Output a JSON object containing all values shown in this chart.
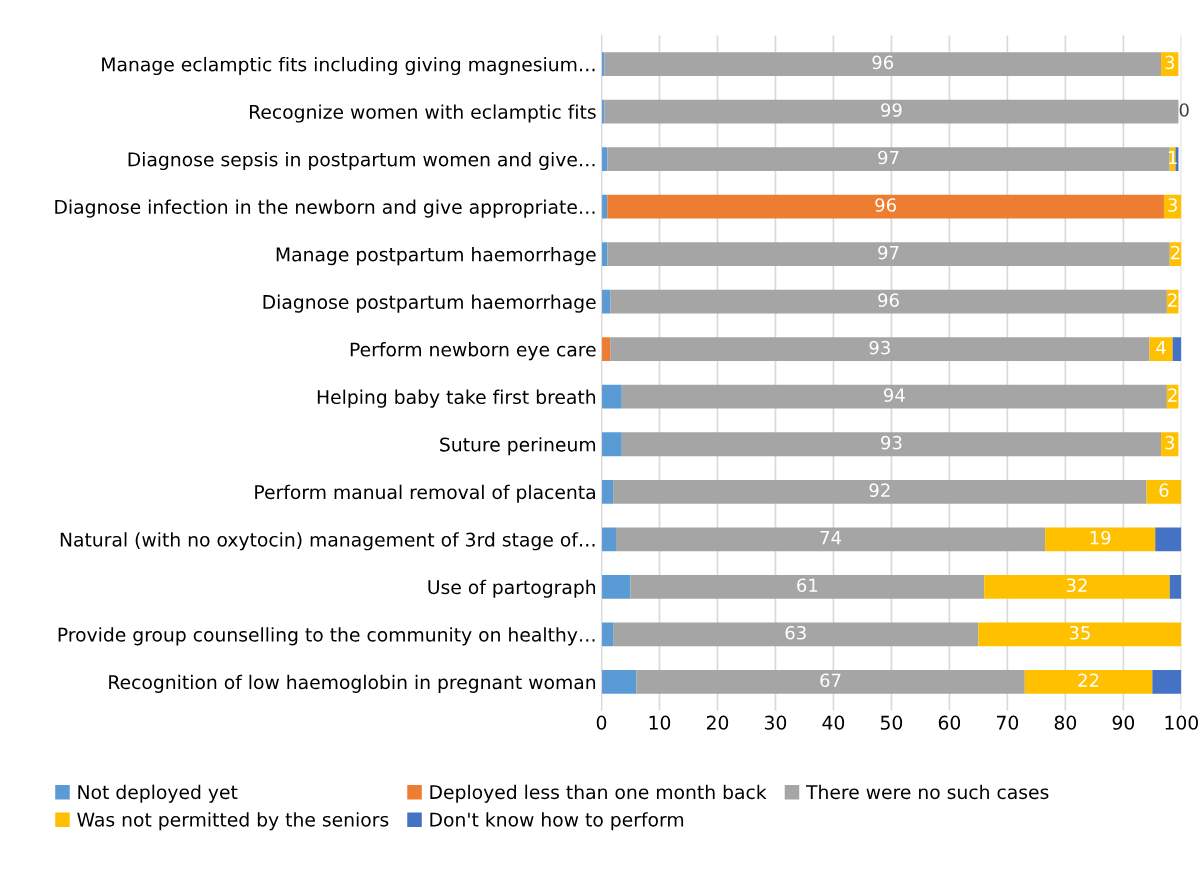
{
  "chart_data": {
    "type": "bar",
    "orientation": "horizontal",
    "stacked": true,
    "categories": [
      "Manage eclamptic fits including giving magnesium…",
      "Recognize women with eclamptic fits",
      "Diagnose sepsis in postpartum women and give…",
      "Diagnose infection in the newborn and give appropriate…",
      "Manage postpartum haemorrhage",
      "Diagnose postpartum haemorrhage",
      "Perform newborn eye care",
      "Helping baby take first breath",
      "Suture perineum",
      "Perform manual removal of placenta",
      "Natural (with no oxytocin) management of 3rd stage of…",
      "Use of partograph",
      "Provide group counselling to the community on healthy…",
      "Recognition of low haemoglobin in pregnant woman"
    ],
    "series": [
      {
        "name": "Not deployed yet",
        "color": "#5b9bd5",
        "values": [
          0.5,
          0.5,
          1,
          1,
          1,
          1.5,
          0,
          3.5,
          3.5,
          2,
          2.5,
          5,
          2,
          6
        ]
      },
      {
        "name": "Deployed less than one month back",
        "color": "#ed7d31",
        "values": [
          0,
          0,
          0,
          96,
          0,
          0,
          1.5,
          0,
          0,
          0,
          0,
          0,
          0,
          0
        ],
        "value_labels": [
          null,
          null,
          null,
          "96",
          null,
          null,
          null,
          null,
          null,
          null,
          null,
          null,
          null,
          null
        ]
      },
      {
        "name": "There were no such cases",
        "color": "#a5a5a5",
        "values": [
          96,
          99,
          97,
          0,
          97,
          96,
          93,
          94,
          93,
          92,
          74,
          61,
          63,
          67
        ],
        "value_labels": [
          "96",
          "99",
          "97",
          null,
          "97",
          "96",
          "93",
          "94",
          "93",
          "92",
          "74",
          "61",
          "63",
          "67"
        ]
      },
      {
        "name": "Was not permitted by the seniors",
        "color": "#ffc000",
        "values": [
          3,
          0,
          1,
          3,
          2,
          2,
          4,
          2,
          3,
          6,
          19,
          32,
          35,
          22
        ],
        "value_labels": [
          "3",
          "0",
          "1",
          "3",
          "2",
          "2",
          "4",
          "2",
          "3",
          "6",
          "19",
          "32",
          "35",
          "22"
        ]
      },
      {
        "name": "Don't know how to perform",
        "color": "#4472c4",
        "values": [
          0,
          0,
          0.5,
          0,
          0,
          0,
          1.5,
          0,
          0,
          0,
          4.5,
          2,
          0,
          5
        ]
      }
    ],
    "xlim": [
      0,
      100
    ],
    "xticks": [
      0,
      10,
      20,
      30,
      40,
      50,
      60,
      70,
      80,
      90,
      100
    ],
    "grid": "x",
    "legend": "bottom"
  }
}
